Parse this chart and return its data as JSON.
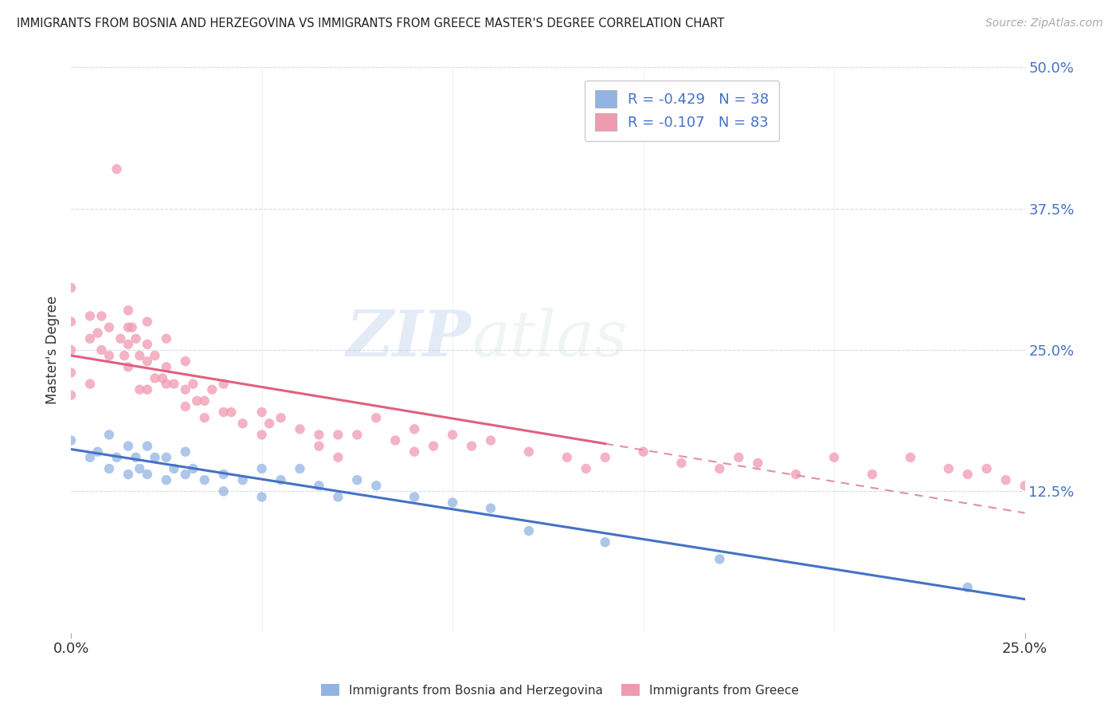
{
  "title": "IMMIGRANTS FROM BOSNIA AND HERZEGOVINA VS IMMIGRANTS FROM GREECE MASTER'S DEGREE CORRELATION CHART",
  "source": "Source: ZipAtlas.com",
  "xlabel": "",
  "ylabel": "Master's Degree",
  "xlim": [
    0.0,
    0.25
  ],
  "ylim": [
    0.0,
    0.5
  ],
  "xtick_labels": [
    "0.0%",
    "25.0%"
  ],
  "ytick_labels": [
    "12.5%",
    "25.0%",
    "37.5%",
    "50.0%"
  ],
  "ytick_values": [
    0.125,
    0.25,
    0.375,
    0.5
  ],
  "xtick_values": [
    0.0,
    0.25
  ],
  "color_blue": "#92b4e3",
  "color_pink": "#f09ab0",
  "line_blue": "#4472c4",
  "line_pink": "#e06080",
  "line_dashed_color": "#e090a8",
  "R_blue": -0.429,
  "N_blue": 38,
  "R_pink": -0.107,
  "N_pink": 83,
  "legend_label_blue": "Immigrants from Bosnia and Herzegovina",
  "legend_label_pink": "Immigrants from Greece",
  "watermark_zip": "ZIP",
  "watermark_atlas": "atlas",
  "background_color": "#ffffff",
  "scatter_blue_x": [
    0.0,
    0.005,
    0.007,
    0.01,
    0.01,
    0.012,
    0.015,
    0.015,
    0.017,
    0.018,
    0.02,
    0.02,
    0.022,
    0.025,
    0.025,
    0.027,
    0.03,
    0.03,
    0.032,
    0.035,
    0.04,
    0.04,
    0.045,
    0.05,
    0.05,
    0.055,
    0.06,
    0.065,
    0.07,
    0.075,
    0.08,
    0.09,
    0.1,
    0.11,
    0.12,
    0.14,
    0.17,
    0.235
  ],
  "scatter_blue_y": [
    0.17,
    0.155,
    0.16,
    0.175,
    0.145,
    0.155,
    0.165,
    0.14,
    0.155,
    0.145,
    0.165,
    0.14,
    0.155,
    0.155,
    0.135,
    0.145,
    0.16,
    0.14,
    0.145,
    0.135,
    0.14,
    0.125,
    0.135,
    0.145,
    0.12,
    0.135,
    0.145,
    0.13,
    0.12,
    0.135,
    0.13,
    0.12,
    0.115,
    0.11,
    0.09,
    0.08,
    0.065,
    0.04
  ],
  "scatter_pink_x": [
    0.0,
    0.0,
    0.0,
    0.0,
    0.0,
    0.005,
    0.005,
    0.005,
    0.007,
    0.008,
    0.008,
    0.01,
    0.01,
    0.012,
    0.013,
    0.014,
    0.015,
    0.015,
    0.015,
    0.015,
    0.016,
    0.017,
    0.018,
    0.018,
    0.02,
    0.02,
    0.02,
    0.02,
    0.022,
    0.022,
    0.024,
    0.025,
    0.025,
    0.025,
    0.027,
    0.03,
    0.03,
    0.03,
    0.032,
    0.033,
    0.035,
    0.035,
    0.037,
    0.04,
    0.04,
    0.042,
    0.045,
    0.05,
    0.05,
    0.052,
    0.055,
    0.06,
    0.065,
    0.065,
    0.07,
    0.07,
    0.075,
    0.08,
    0.085,
    0.09,
    0.09,
    0.095,
    0.1,
    0.105,
    0.11,
    0.12,
    0.13,
    0.135,
    0.14,
    0.15,
    0.16,
    0.17,
    0.175,
    0.18,
    0.19,
    0.2,
    0.21,
    0.22,
    0.23,
    0.235,
    0.24,
    0.245,
    0.25
  ],
  "scatter_pink_y": [
    0.305,
    0.275,
    0.25,
    0.23,
    0.21,
    0.28,
    0.26,
    0.22,
    0.265,
    0.28,
    0.25,
    0.27,
    0.245,
    0.41,
    0.26,
    0.245,
    0.285,
    0.27,
    0.255,
    0.235,
    0.27,
    0.26,
    0.245,
    0.215,
    0.275,
    0.255,
    0.24,
    0.215,
    0.245,
    0.225,
    0.225,
    0.26,
    0.235,
    0.22,
    0.22,
    0.24,
    0.215,
    0.2,
    0.22,
    0.205,
    0.205,
    0.19,
    0.215,
    0.22,
    0.195,
    0.195,
    0.185,
    0.195,
    0.175,
    0.185,
    0.19,
    0.18,
    0.175,
    0.165,
    0.175,
    0.155,
    0.175,
    0.19,
    0.17,
    0.18,
    0.16,
    0.165,
    0.175,
    0.165,
    0.17,
    0.16,
    0.155,
    0.145,
    0.155,
    0.16,
    0.15,
    0.145,
    0.155,
    0.15,
    0.14,
    0.155,
    0.14,
    0.155,
    0.145,
    0.14,
    0.145,
    0.135,
    0.13
  ]
}
